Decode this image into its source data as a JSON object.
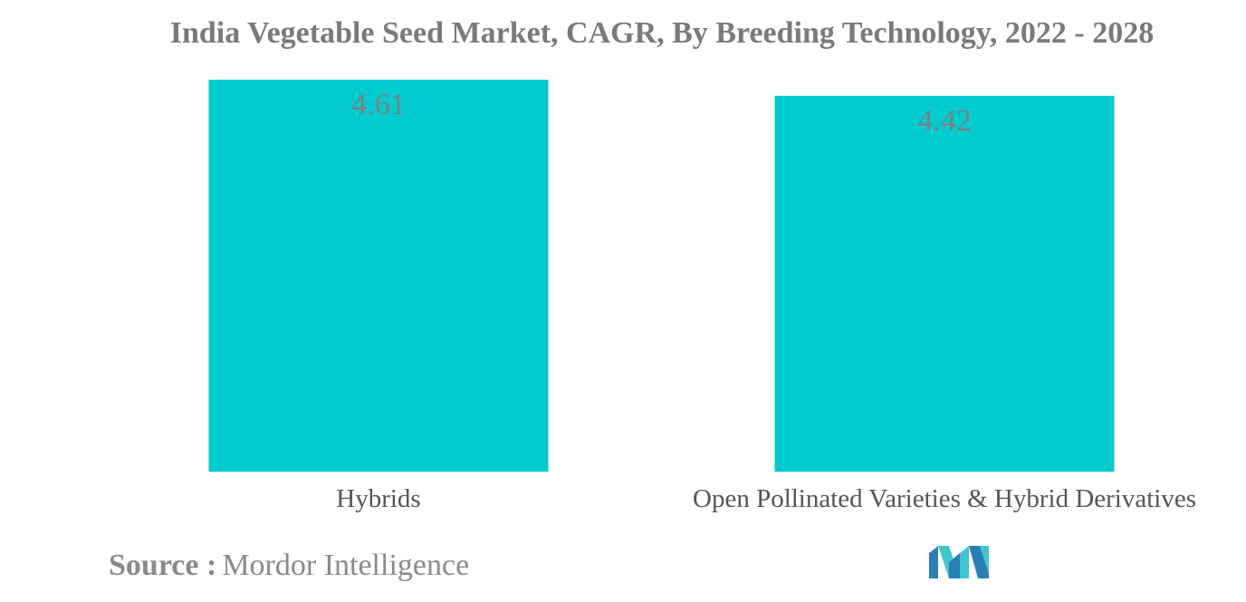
{
  "chart_data": {
    "type": "bar",
    "title": "India Vegetable Seed Market, CAGR, By Breeding Technology, 2022 - 2028",
    "categories": [
      "Hybrids",
      "Open Pollinated Varieties & Hybrid Derivatives"
    ],
    "values": [
      4.61,
      4.42
    ],
    "value_labels": [
      "4.61",
      "4.42"
    ],
    "xlabel": "",
    "ylabel": "",
    "ylim": [
      0,
      4.61
    ],
    "grid": false,
    "legend": "none",
    "bar_color": "#00ccd0",
    "label_color": "#7f7f7f"
  },
  "source": {
    "label": "Source :",
    "text": "Mordor Intelligence"
  },
  "logo": {
    "icon": "mordor-intelligence-logo",
    "colors": [
      "#2a7fb5",
      "#3ec6d0"
    ]
  }
}
